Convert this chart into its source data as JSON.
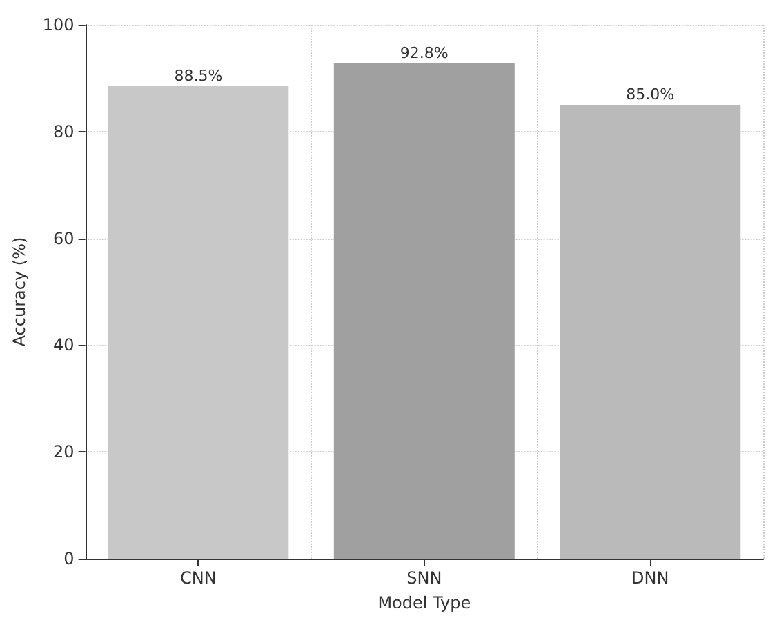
{
  "chart_data": {
    "type": "bar",
    "xlabel": "Model Type",
    "ylabel": "Accuracy (%)",
    "categories": [
      "CNN",
      "SNN",
      "DNN"
    ],
    "values": [
      88.5,
      92.8,
      85.0
    ],
    "colors": [
      "#c8c8c8",
      "#a0a0a0",
      "#bababa"
    ],
    "value_labels": [
      "88.5%",
      "92.8%",
      "85.0%"
    ],
    "ylim": [
      0,
      100
    ],
    "yticks": [
      0,
      20,
      40,
      60,
      80,
      100
    ],
    "grid": true
  }
}
